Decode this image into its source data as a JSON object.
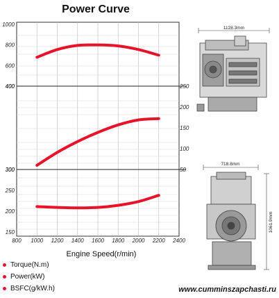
{
  "chart_data": {
    "type": "line",
    "title": "Power Curve",
    "xlabel": "Engine Speed(r/min)",
    "xlim": [
      800,
      2400
    ],
    "x_ticks": [
      800,
      1000,
      1200,
      1400,
      1600,
      1800,
      2000,
      2200,
      2400
    ],
    "grid": true,
    "legend_position": "bottom-left",
    "legend": [
      "Torque(N.m)",
      "Power(kW)",
      "BSFC(g/kW.h)"
    ],
    "panels": [
      {
        "name": "Torque(N.m)",
        "ylim": [
          400,
          1000
        ],
        "left_ticks": [
          400,
          600,
          800,
          1000
        ],
        "x": [
          1000,
          1200,
          1400,
          1600,
          1800,
          2000,
          2200
        ],
        "values": [
          680,
          755,
          795,
          800,
          790,
          755,
          700
        ]
      },
      {
        "name": "Power(kW)",
        "ylim": [
          50,
          250
        ],
        "left_ticks": [
          300,
          400
        ],
        "right_ticks": [
          50,
          100,
          150,
          200,
          250
        ],
        "x": [
          1000,
          1200,
          1400,
          1600,
          1800,
          2000,
          2200
        ],
        "values": [
          60,
          91,
          117,
          139,
          157,
          169,
          172
        ]
      },
      {
        "name": "BSFC(g/kW.h)",
        "ylim": [
          150,
          300
        ],
        "left_ticks": [
          150,
          200,
          250,
          300
        ],
        "x": [
          1000,
          1200,
          1400,
          1600,
          1800,
          2000,
          2200
        ],
        "values": [
          211,
          209,
          208,
          209,
          214,
          223,
          238
        ]
      }
    ],
    "line_color": "#e8132b"
  },
  "drawing": {
    "width_label": "1128.3mm",
    "front_width_label": "718.8mm",
    "height_label": "1061.9mm"
  },
  "footer": {
    "watermark": "www.cumminszapchasti.ru"
  }
}
